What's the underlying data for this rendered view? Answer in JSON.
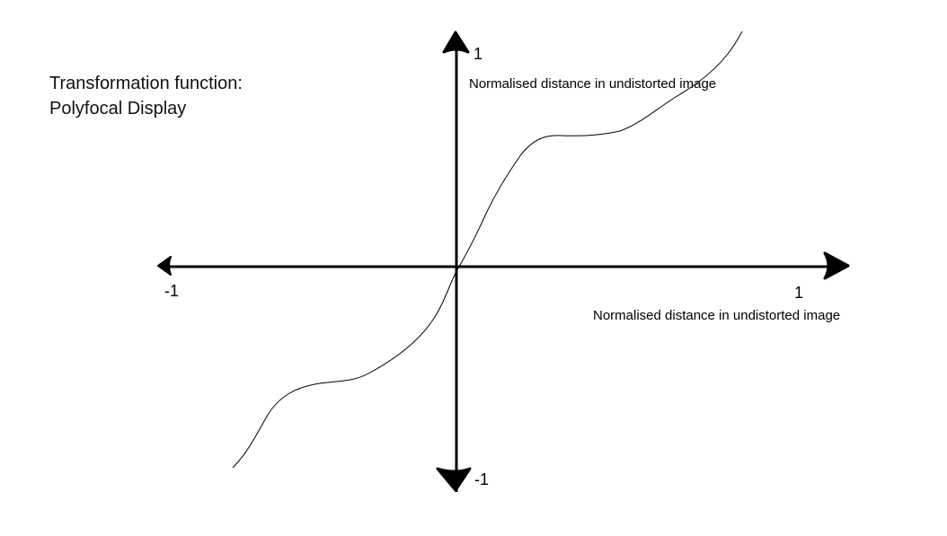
{
  "title": {
    "line1": "Transformation function:",
    "line2": "Polyfocal Display"
  },
  "axes": {
    "x": {
      "label": "Normalised distance in undistorted image",
      "min_label": "-1",
      "max_label": "1",
      "range": [
        -1,
        1
      ]
    },
    "y": {
      "label": "Normalised distance in undistorted image",
      "min_label": "-1",
      "max_label": "1",
      "range": [
        -1,
        1
      ]
    }
  },
  "curve": {
    "description_points": [
      [
        -0.61,
        -1.0
      ],
      [
        -0.5,
        -0.68
      ],
      [
        -0.36,
        -0.57
      ],
      [
        -0.26,
        -0.5
      ],
      [
        -0.1,
        -0.27
      ],
      [
        0.0,
        0.0
      ],
      [
        0.1,
        0.27
      ],
      [
        0.26,
        0.5
      ],
      [
        0.36,
        0.57
      ],
      [
        0.5,
        0.68
      ],
      [
        0.77,
        1.1
      ]
    ]
  },
  "colors": {
    "line": "#000000",
    "background": "#ffffff"
  }
}
